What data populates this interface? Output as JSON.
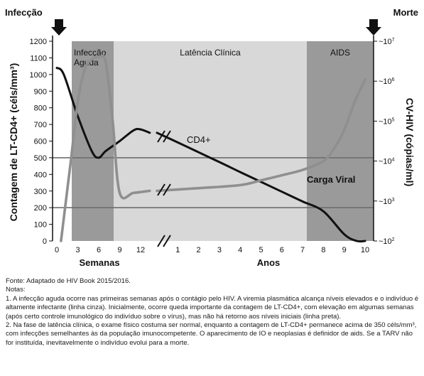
{
  "chart_data": {
    "type": "line",
    "top_labels": {
      "left": "Infecção",
      "right": "Morte"
    },
    "phases": [
      {
        "label_line1": "Infecção",
        "label_line2": "Aguda",
        "shade": "#9a9a9a"
      },
      {
        "label_line1": "Latência Clínica",
        "label_line2": "",
        "shade": "#d8d8d8"
      },
      {
        "label_line1": "AIDS",
        "label_line2": "",
        "shade": "#9a9a9a"
      }
    ],
    "ylabel_left": "Contagem de LT-CD4+ (céls/mm³)",
    "ylabel_right": "CV-HIV (cópias/ml)",
    "yticks_left": [
      "0",
      "100",
      "200",
      "300",
      "400",
      "500",
      "600",
      "700",
      "800",
      "900",
      "1000",
      "1100",
      "1200"
    ],
    "ylim_left": [
      0,
      1200
    ],
    "yticks_right": [
      {
        "exp": "2",
        "value": 100
      },
      {
        "exp": "3",
        "value": 1000
      },
      {
        "exp": "4",
        "value": 10000
      },
      {
        "exp": "5",
        "value": 100000
      },
      {
        "exp": "6",
        "value": 1000000
      },
      {
        "exp": "7",
        "value": 10000000
      }
    ],
    "ylim_right": [
      100,
      10000000
    ],
    "right_scale": "log",
    "hlines_left": [
      200,
      500
    ],
    "x_segments": [
      {
        "unit_label": "Semanas",
        "ticks": [
          "0",
          "3",
          "6",
          "9",
          "12"
        ],
        "range": [
          0,
          12
        ]
      },
      {
        "unit_label": "Anos",
        "ticks": [
          "1",
          "2",
          "3",
          "4",
          "5",
          "6",
          "7",
          "8",
          "9",
          "10"
        ],
        "range": [
          0,
          10
        ]
      }
    ],
    "series": [
      {
        "name": "CD4+",
        "axis": "left",
        "color": "#111111",
        "weeks": {
          "x": [
            0,
            1,
            3,
            5,
            6,
            7,
            9,
            11,
            12,
            13.3
          ],
          "y": [
            1040,
            1000,
            750,
            540,
            500,
            540,
            600,
            665,
            670,
            650
          ]
        },
        "years": {
          "x": [
            0,
            1,
            2,
            3,
            4,
            5,
            6,
            7,
            8,
            9,
            9.6,
            10
          ],
          "y": [
            650,
            592,
            533,
            474,
            414,
            355,
            296,
            237,
            178,
            40,
            0,
            0
          ]
        }
      },
      {
        "name": "Carga Viral",
        "axis": "right",
        "color": "#8f8f8f",
        "weeks": {
          "x": [
            0.6,
            2,
            3,
            4,
            5,
            6,
            7,
            8,
            9,
            11,
            13.3
          ],
          "y": [
            100,
            10000,
            300000,
            2000000,
            3500000,
            4000000,
            3000000,
            100000,
            1600,
            1600,
            1800
          ]
        },
        "years": {
          "x": [
            0,
            2,
            4,
            5,
            6,
            7,
            8,
            8.5,
            9,
            9.5,
            10
          ],
          "y": [
            1800,
            2100,
            2500,
            3300,
            4400,
            6000,
            10000,
            20000,
            60000,
            300000,
            1100000
          ]
        }
      }
    ],
    "legend": "inline-labels"
  },
  "notes": {
    "source": "Fonte: Adaptado de HIV Book 2015/2016.",
    "heading": "Notas:",
    "note1": "1. A infecção aguda ocorre nas primeiras semanas após o contágio pelo HIV. A viremia plasmática alcança níveis elevados e o indivíduo é altamente infectante (linha cinza). Inicialmente, ocorre queda importante da contagem de LT-CD4+, com elevação em algumas semanas (após certo controle imunológico do indivíduo sobre o vírus), mas não há retorno aos níveis iniciais (linha preta).",
    "note2": "2. Na fase de latência clínica, o exame físico costuma ser normal, enquanto a contagem de LT-CD4+ permanece acima de 350 céls/mm³, com infecções semelhantes às da população imunocompetente. O aparecimento de IO e neoplasias é definidor de aids. Se a TARV não for instituída, inevitavelmente o indivíduo evolui para a morte."
  }
}
